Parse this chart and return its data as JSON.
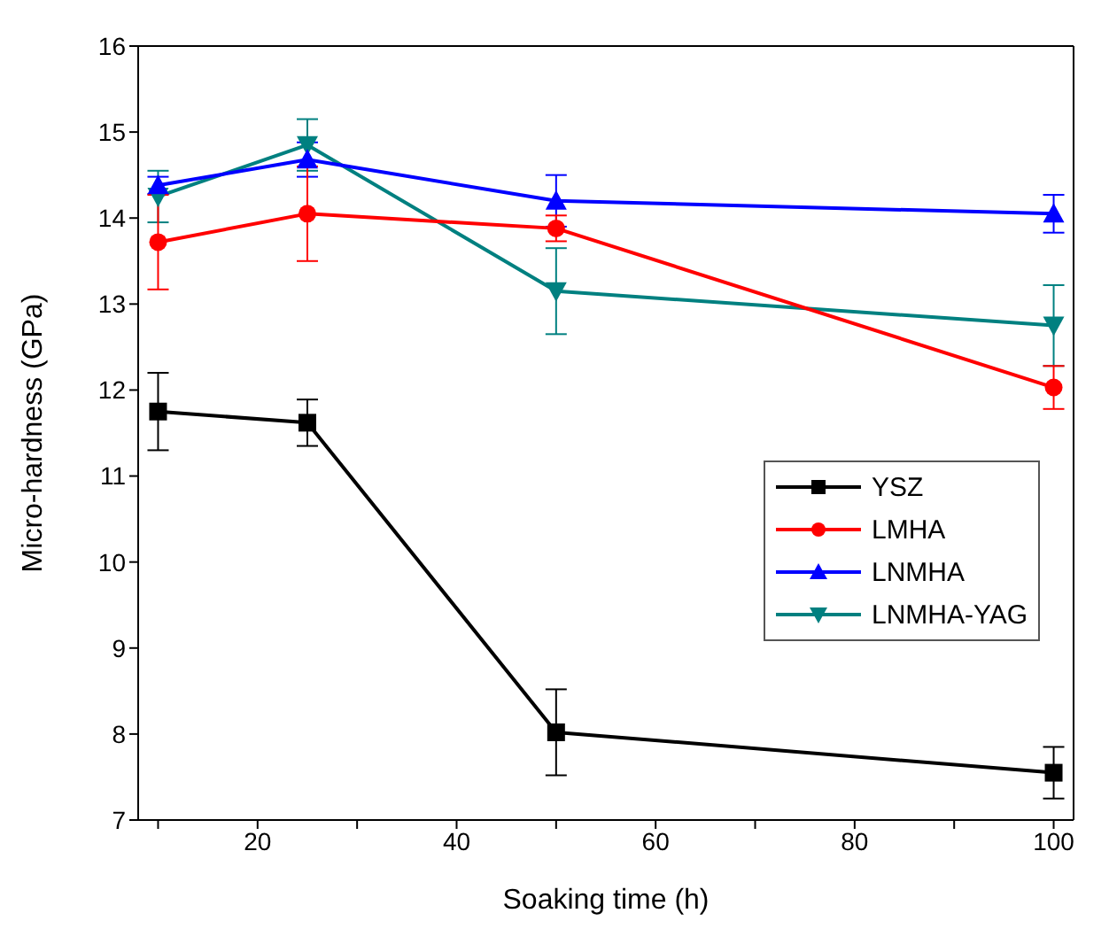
{
  "chart_data": {
    "type": "line",
    "xlabel": "Soaking time (h)",
    "ylabel": "Micro-hardness (GPa)",
    "x": [
      10,
      25,
      50,
      100
    ],
    "xlim": [
      8,
      102
    ],
    "xticks": [
      {
        "value": 10,
        "label": null
      },
      20,
      {
        "value": 30,
        "label": null
      },
      40,
      {
        "value": 50,
        "label": null
      },
      60,
      {
        "value": 70,
        "label": null
      },
      80,
      {
        "value": 90,
        "label": null
      },
      100
    ],
    "ylim": [
      7,
      16
    ],
    "yticks": [
      7,
      8,
      9,
      10,
      11,
      12,
      13,
      14,
      15,
      16
    ],
    "legend": "right",
    "line_style": "solid",
    "series": [
      {
        "name": "YSZ",
        "color": "#000000",
        "marker": "square",
        "values": [
          11.75,
          11.62,
          8.02,
          7.55
        ],
        "errors": [
          0.45,
          0.27,
          0.5,
          0.3
        ]
      },
      {
        "name": "LMHA",
        "color": "#ff0000",
        "marker": "circle",
        "values": [
          13.72,
          14.05,
          13.88,
          12.03
        ],
        "errors": [
          0.55,
          0.55,
          0.15,
          0.25
        ]
      },
      {
        "name": "LNMHA",
        "color": "#0000ff",
        "marker": "triangle",
        "values": [
          14.38,
          14.68,
          14.2,
          14.05
        ],
        "errors": [
          0.1,
          0.2,
          0.3,
          0.22
        ]
      },
      {
        "name": "LNMHA-YAG",
        "color": "#008080",
        "marker": "triangle-down",
        "values": [
          14.25,
          14.85,
          13.15,
          12.75
        ],
        "errors": [
          0.3,
          0.3,
          0.5,
          0.47
        ]
      }
    ]
  }
}
